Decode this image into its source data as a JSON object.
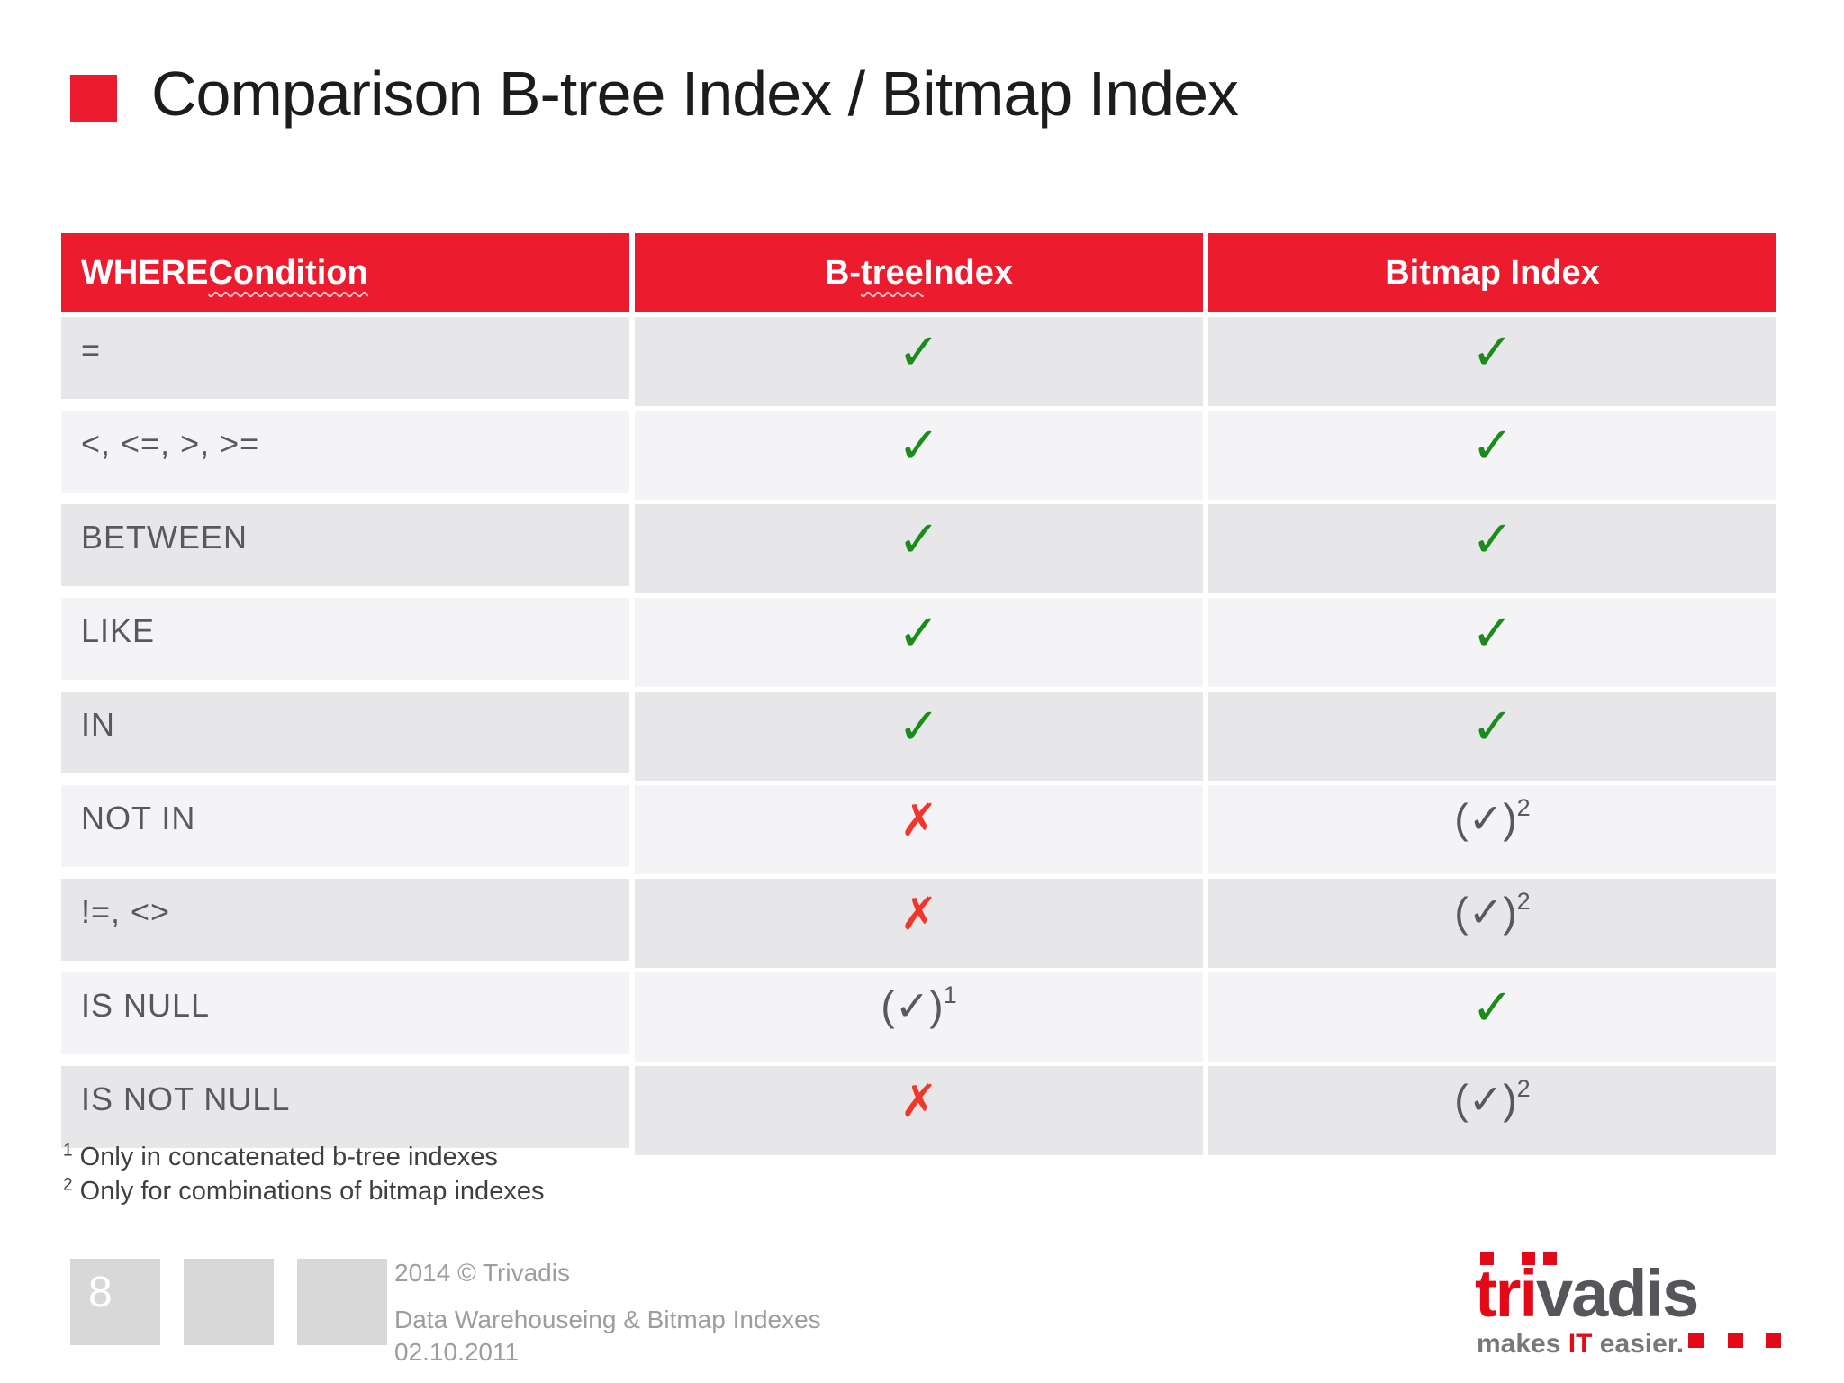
{
  "slide": {
    "title": "Comparison B-tree Index / Bitmap Index"
  },
  "colors": {
    "accent_red": "#EC1B2D",
    "logo_red": "#E30917",
    "check_green": "#1B8C1B",
    "cross_red": "#F0372B",
    "row_dark": "#E7E7E9",
    "row_light": "#F4F4F6"
  },
  "table": {
    "headers": [
      {
        "pre": "WHERE ",
        "flagged": "Condition",
        "post": ""
      },
      {
        "pre": "B-",
        "flagged": "tree",
        "post": " Index"
      },
      {
        "pre": "",
        "flagged": "",
        "post": "Bitmap Index"
      }
    ],
    "rows": [
      {
        "condition": "=",
        "btree": {
          "glyph": "✓",
          "sup": "",
          "style": "check"
        },
        "bitmap": {
          "glyph": "✓",
          "sup": "",
          "style": "check"
        }
      },
      {
        "condition": "<, <=, >, >=",
        "btree": {
          "glyph": "✓",
          "sup": "",
          "style": "check"
        },
        "bitmap": {
          "glyph": "✓",
          "sup": "",
          "style": "check"
        }
      },
      {
        "condition": "BETWEEN",
        "btree": {
          "glyph": "✓",
          "sup": "",
          "style": "check"
        },
        "bitmap": {
          "glyph": "✓",
          "sup": "",
          "style": "check"
        }
      },
      {
        "condition": "LIKE",
        "btree": {
          "glyph": "✓",
          "sup": "",
          "style": "check"
        },
        "bitmap": {
          "glyph": "✓",
          "sup": "",
          "style": "check"
        }
      },
      {
        "condition": "IN",
        "btree": {
          "glyph": "✓",
          "sup": "",
          "style": "check"
        },
        "bitmap": {
          "glyph": "✓",
          "sup": "",
          "style": "check"
        }
      },
      {
        "condition": "NOT IN",
        "btree": {
          "glyph": "✗",
          "sup": "",
          "style": "cross"
        },
        "bitmap": {
          "glyph": "(✓)",
          "sup": "2",
          "style": "paren"
        }
      },
      {
        "condition": "!=, <>",
        "btree": {
          "glyph": "✗",
          "sup": "",
          "style": "cross"
        },
        "bitmap": {
          "glyph": "(✓)",
          "sup": "2",
          "style": "paren"
        }
      },
      {
        "condition": "IS NULL",
        "btree": {
          "glyph": "(✓)",
          "sup": "1",
          "style": "paren"
        },
        "bitmap": {
          "glyph": "✓",
          "sup": "",
          "style": "check"
        }
      },
      {
        "condition": "IS NOT NULL",
        "btree": {
          "glyph": "✗",
          "sup": "",
          "style": "cross"
        },
        "bitmap": {
          "glyph": "(✓)",
          "sup": "2",
          "style": "paren"
        }
      }
    ]
  },
  "footnotes": [
    {
      "marker": "1",
      "text": " Only in concatenated b-tree indexes"
    },
    {
      "marker": "2",
      "text": " Only for combinations of bitmap indexes"
    }
  ],
  "footer": {
    "page_number": "8",
    "copyright": "2014 © Trivadis",
    "subject": "Data Warehouseing & Bitmap Indexes",
    "date": "02.10.2011"
  },
  "logo": {
    "word_red": "tri",
    "word_gray": "vadis",
    "tagline_pre": "makes ",
    "tagline_accent": "IT",
    "tagline_post": " easier."
  }
}
